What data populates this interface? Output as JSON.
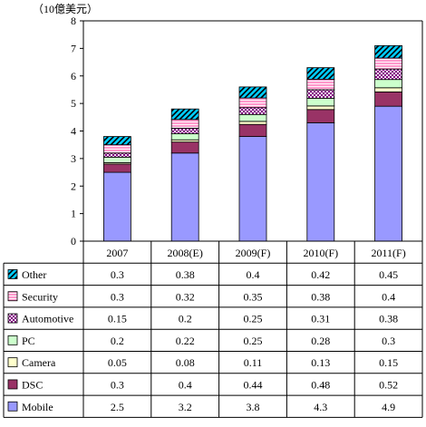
{
  "chart_data": {
    "type": "bar",
    "stacked": true,
    "unit_label": "（10億美元）",
    "ylim": [
      0,
      8
    ],
    "yticks": [
      "0",
      "1",
      "2",
      "3",
      "4",
      "5",
      "6",
      "7",
      "8"
    ],
    "categories": [
      "2007",
      "2008(E)",
      "2009(F)",
      "2010(F)",
      "2011(F)"
    ],
    "series": [
      {
        "name": "Mobile",
        "color": "#9999ff",
        "pattern": "solid",
        "values": [
          2.5,
          3.2,
          3.8,
          4.3,
          4.9
        ],
        "labels": [
          "2.5",
          "3.2",
          "3.8",
          "4.3",
          "4.9"
        ]
      },
      {
        "name": "DSC",
        "color": "#993366",
        "pattern": "solid",
        "values": [
          0.3,
          0.4,
          0.44,
          0.48,
          0.52
        ],
        "labels": [
          "0.3",
          "0.4",
          "0.44",
          "0.48",
          "0.52"
        ]
      },
      {
        "name": "Camera",
        "color": "#ffffcc",
        "pattern": "solid",
        "values": [
          0.05,
          0.08,
          0.11,
          0.13,
          0.15
        ],
        "labels": [
          "0.05",
          "0.08",
          "0.11",
          "0.13",
          "0.15"
        ]
      },
      {
        "name": "PC",
        "color": "#ccffcc",
        "pattern": "solid",
        "values": [
          0.2,
          0.22,
          0.25,
          0.28,
          0.3
        ],
        "labels": [
          "0.2",
          "0.22",
          "0.25",
          "0.28",
          "0.3"
        ]
      },
      {
        "name": "Automotive",
        "color": "#800080",
        "pattern": "checker",
        "values": [
          0.15,
          0.2,
          0.25,
          0.31,
          0.38
        ],
        "labels": [
          "0.15",
          "0.2",
          "0.25",
          "0.31",
          "0.38"
        ]
      },
      {
        "name": "Security",
        "color": "#ff99cc",
        "pattern": "hlines",
        "values": [
          0.3,
          0.32,
          0.35,
          0.38,
          0.4
        ],
        "labels": [
          "0.3",
          "0.32",
          "0.35",
          "0.38",
          "0.4"
        ]
      },
      {
        "name": "Other",
        "color": "#00ccff",
        "pattern": "diagonal",
        "values": [
          0.3,
          0.38,
          0.4,
          0.42,
          0.45
        ],
        "labels": [
          "0.3",
          "0.38",
          "0.4",
          "0.42",
          "0.45"
        ]
      }
    ],
    "table_row_order": [
      "Other",
      "Security",
      "Automotive",
      "PC",
      "Camera",
      "DSC",
      "Mobile"
    ],
    "grid": false,
    "legend": "data-table"
  }
}
